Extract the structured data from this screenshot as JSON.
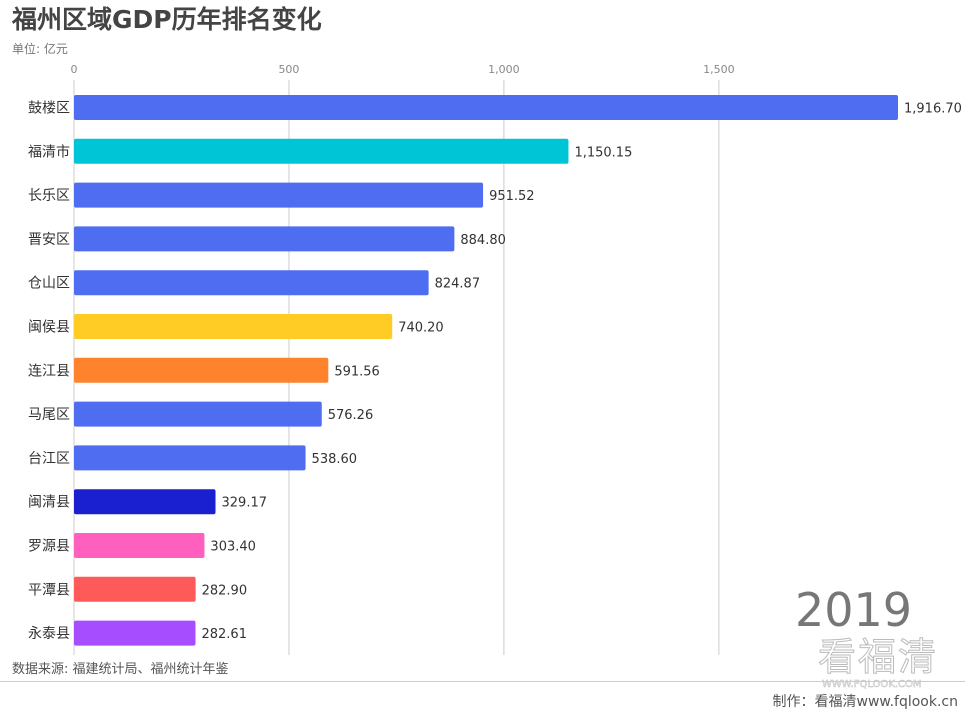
{
  "title": "福州区域GDP历年排名变化",
  "unit": "单位: 亿元",
  "source": "数据来源: 福建统计局、福州统计年鉴",
  "credit": "制作：看福清www.fqlook.cn",
  "watermark": "看福清",
  "watermark_url": "WWW.FQLOOK.COM",
  "chart_data": {
    "type": "bar",
    "orientation": "horizontal",
    "year": "2019",
    "categories": [
      "鼓楼区",
      "福清市",
      "长乐区",
      "晋安区",
      "仓山区",
      "闽侯县",
      "连江县",
      "马尾区",
      "台江区",
      "闽清县",
      "罗源县",
      "平潭县",
      "永泰县"
    ],
    "values": [
      1916.7,
      1150.15,
      951.52,
      884.8,
      824.87,
      740.2,
      591.56,
      576.26,
      538.6,
      329.17,
      303.4,
      282.9,
      282.61
    ],
    "labels": [
      "1,916.70",
      "1,150.15",
      "951.52",
      "884.80",
      "824.87",
      "740.20",
      "591.56",
      "576.26",
      "538.60",
      "329.17",
      "303.40",
      "282.90",
      "282.61"
    ],
    "colors": [
      "#4f6df0",
      "#00c5d6",
      "#4f6df0",
      "#4f6df0",
      "#4f6df0",
      "#ffcc26",
      "#ff832c",
      "#4f6df0",
      "#4f6df0",
      "#1a20cf",
      "#ff5fbd",
      "#ff5a5a",
      "#a64dff"
    ],
    "xticks": [
      0,
      500,
      1000,
      1500
    ],
    "xtick_labels": [
      "0",
      "500",
      "1,000",
      "1,500"
    ],
    "xlim": [
      0,
      1916.7
    ],
    "grid": true
  }
}
